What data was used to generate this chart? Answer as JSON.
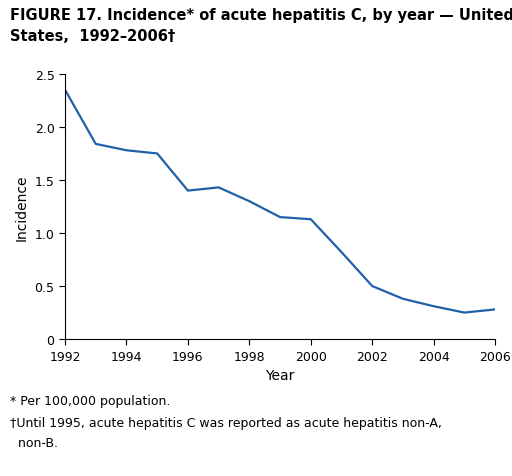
{
  "title_line1": "FIGURE 17. Incidence* of acute hepatitis C, by year — United",
  "title_line2": "States,  1992–2006†",
  "xlabel": "Year",
  "ylabel": "Incidence",
  "line_color": "#2060a8",
  "line_width": 1.6,
  "years": [
    1992,
    1993,
    1994,
    1995,
    1996,
    1997,
    1998,
    1999,
    2000,
    2001,
    2002,
    2003,
    2004,
    2005,
    2006
  ],
  "values": [
    2.35,
    1.84,
    1.78,
    1.75,
    1.4,
    1.43,
    1.3,
    1.15,
    1.13,
    0.82,
    0.5,
    0.38,
    0.31,
    0.25,
    0.28
  ],
  "xlim": [
    1992,
    2006
  ],
  "ylim": [
    0,
    2.5
  ],
  "yticks": [
    0,
    0.5,
    1.0,
    1.5,
    2.0,
    2.5
  ],
  "xticks": [
    1992,
    1994,
    1996,
    1998,
    2000,
    2002,
    2004,
    2006
  ],
  "footnote1": "* Per 100,000 population.",
  "footnote2": "†Until 1995, acute hepatitis C was reported as acute hepatitis non-A,",
  "footnote3": "  non-B.",
  "background_color": "#ffffff",
  "title_fontsize": 10.5,
  "axis_label_fontsize": 10,
  "tick_fontsize": 9,
  "footnote_fontsize": 9
}
